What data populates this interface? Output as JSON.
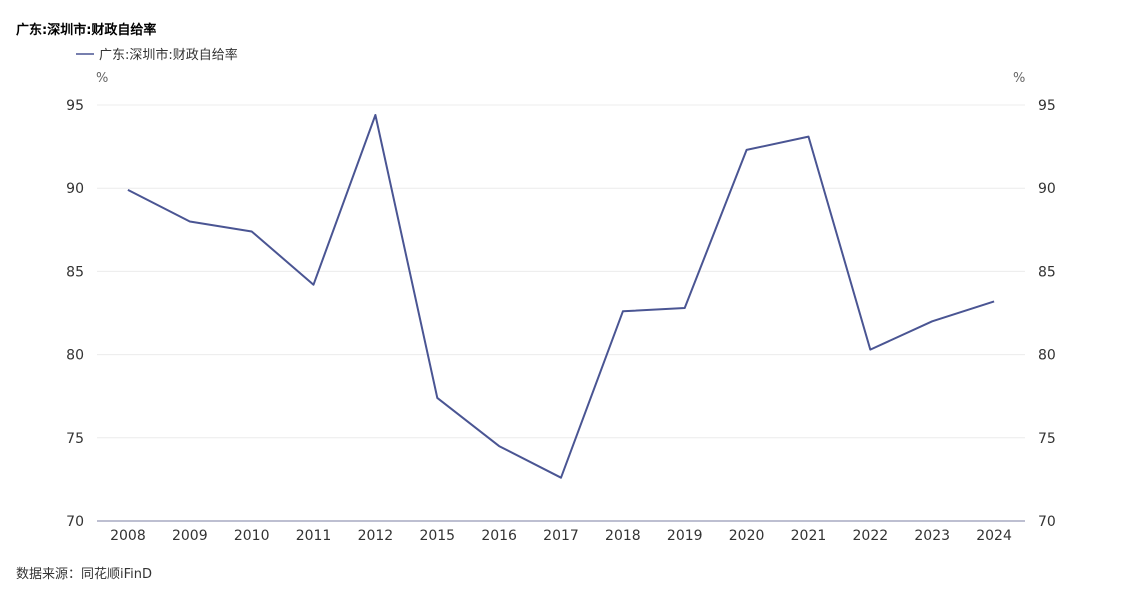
{
  "title": "广东:深圳市:财政自给率",
  "source": "数据来源：同花顺iFinD",
  "chart_data": {
    "type": "line",
    "title": "广东:深圳市:财政自给率",
    "xlabel": "",
    "ylabel": "%",
    "y2label": "%",
    "ylim": [
      70,
      95
    ],
    "yticks": [
      70,
      75,
      80,
      85,
      90,
      95
    ],
    "grid": true,
    "legend_position": "top-left",
    "categories": [
      "2008",
      "2009",
      "2010",
      "2011",
      "2012",
      "2015",
      "2016",
      "2017",
      "2018",
      "2019",
      "2020",
      "2021",
      "2022",
      "2023",
      "2024"
    ],
    "series": [
      {
        "name": "广东:深圳市:财政自给率",
        "color": "#4a5593",
        "values": [
          89.9,
          88.0,
          87.4,
          84.2,
          94.4,
          77.4,
          74.5,
          72.6,
          82.6,
          82.8,
          92.3,
          93.1,
          80.3,
          82.0,
          83.2
        ]
      }
    ]
  }
}
